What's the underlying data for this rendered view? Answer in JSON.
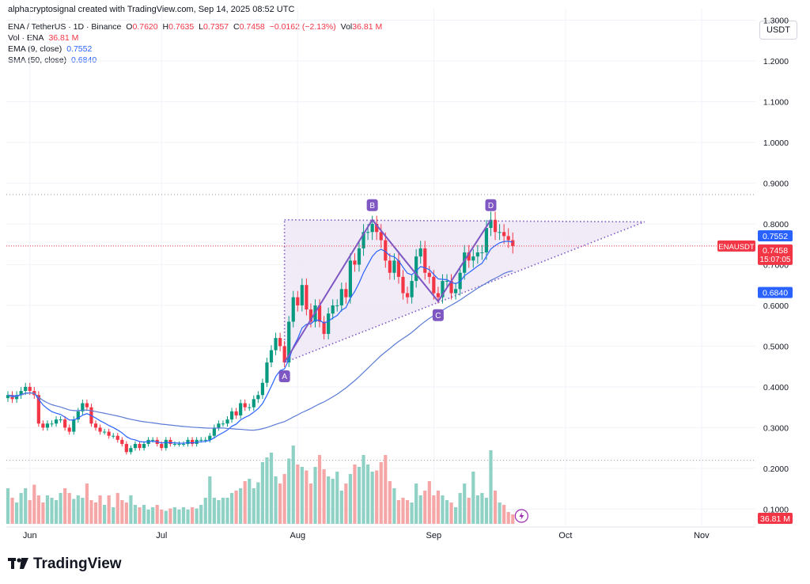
{
  "credit": "alphacryptosignal created with TradingView.com, Sep 14, 2025 08:52 UTC",
  "currency_button": "USDT",
  "legend": {
    "symbol": "ENA / TetherUS · 1D · Binance",
    "o_label": "O",
    "o": "0.7620",
    "h_label": "H",
    "h": "0.7635",
    "l_label": "L",
    "l": "0.7357",
    "c_label": "C",
    "c": "0.7458",
    "change": "−0.0162 (−2.13%)",
    "vol_label": "Vol",
    "vol": "36.81 M",
    "vol_ind_label": "Vol · ENA",
    "vol_ind_value": "36.81 M",
    "ema_label": "EMA (9, close)",
    "ema_value": "0.7552",
    "sma_label": "SMA (50, close)",
    "sma_value": "0.6840"
  },
  "logo_text": "TradingView",
  "colors": {
    "up": "#089981",
    "down": "#f23645",
    "ema": "#2962ff",
    "sma": "#5b7bd5",
    "pattern": "#7e57c2",
    "fill": "#ede7f6",
    "vol_up": "#8fd1c5",
    "vol_down": "#f5a6a6"
  },
  "chart_data": {
    "type": "candlestick",
    "y_axis_ticks": [
      "0.1000",
      "0.2000",
      "0.3000",
      "0.4000",
      "0.5000",
      "0.6000",
      "0.7000",
      "0.8000",
      "0.9000",
      "1.0000",
      "1.1000",
      "1.2000",
      "1.3000"
    ],
    "x_axis_ticks": [
      {
        "label": "Jun",
        "day": 5
      },
      {
        "label": "Jul",
        "day": 35
      },
      {
        "label": "Aug",
        "day": 66
      },
      {
        "label": "Sep",
        "day": 97
      },
      {
        "label": "Oct",
        "day": 127
      },
      {
        "label": "Nov",
        "day": 158
      }
    ],
    "ylim": [
      0.06,
      1.33
    ],
    "first_bar": "May 25",
    "price_labels": [
      {
        "name": "ema",
        "text": "0.7552",
        "value": 0.7552
      },
      {
        "name": "last",
        "text": "0.7458",
        "value": 0.7458,
        "countdown": "15:07:05",
        "ticker": "ENAUSDT"
      },
      {
        "name": "sma",
        "text": "0.6840",
        "value": 0.684
      },
      {
        "name": "volume",
        "text": "36.81 M"
      }
    ],
    "horizontal_dotted_lines": [
      0.872,
      0.22
    ],
    "pattern_points": [
      {
        "label": "A",
        "day": 63,
        "price": 0.46
      },
      {
        "label": "B",
        "day": 83,
        "price": 0.81
      },
      {
        "label": "C",
        "day": 98,
        "price": 0.61
      },
      {
        "label": "D",
        "day": 110,
        "price": 0.81
      }
    ],
    "triangle": {
      "apex_day": 145,
      "apex_price": 0.805,
      "top_price": 0.81,
      "start_day": 63,
      "start_price": 0.46
    },
    "closes": [
      0.38,
      0.37,
      0.38,
      0.39,
      0.4,
      0.39,
      0.38,
      0.31,
      0.3,
      0.31,
      0.31,
      0.32,
      0.32,
      0.3,
      0.29,
      0.32,
      0.34,
      0.36,
      0.35,
      0.31,
      0.3,
      0.29,
      0.29,
      0.28,
      0.28,
      0.27,
      0.26,
      0.24,
      0.25,
      0.26,
      0.25,
      0.26,
      0.27,
      0.27,
      0.26,
      0.25,
      0.27,
      0.26,
      0.26,
      0.26,
      0.26,
      0.27,
      0.26,
      0.27,
      0.27,
      0.27,
      0.28,
      0.3,
      0.31,
      0.31,
      0.32,
      0.34,
      0.33,
      0.36,
      0.35,
      0.35,
      0.37,
      0.38,
      0.41,
      0.46,
      0.49,
      0.52,
      0.5,
      0.46,
      0.56,
      0.62,
      0.6,
      0.65,
      0.59,
      0.56,
      0.6,
      0.56,
      0.53,
      0.58,
      0.6,
      0.6,
      0.64,
      0.62,
      0.71,
      0.7,
      0.74,
      0.78,
      0.78,
      0.8,
      0.78,
      0.76,
      0.71,
      0.68,
      0.71,
      0.67,
      0.63,
      0.62,
      0.66,
      0.72,
      0.74,
      0.68,
      0.67,
      0.63,
      0.62,
      0.66,
      0.66,
      0.63,
      0.64,
      0.68,
      0.73,
      0.71,
      0.72,
      0.73,
      0.73,
      0.79,
      0.81,
      0.78,
      0.78,
      0.77,
      0.76,
      0.7458
    ],
    "volumes": [
      0.3,
      0.22,
      0.18,
      0.26,
      0.3,
      0.2,
      0.33,
      0.24,
      0.18,
      0.24,
      0.22,
      0.2,
      0.26,
      0.3,
      0.26,
      0.21,
      0.24,
      0.22,
      0.34,
      0.2,
      0.18,
      0.24,
      0.16,
      0.24,
      0.14,
      0.26,
      0.2,
      0.18,
      0.24,
      0.16,
      0.14,
      0.16,
      0.12,
      0.14,
      0.16,
      0.12,
      0.11,
      0.13,
      0.14,
      0.12,
      0.14,
      0.12,
      0.14,
      0.13,
      0.16,
      0.22,
      0.4,
      0.22,
      0.2,
      0.22,
      0.22,
      0.26,
      0.28,
      0.3,
      0.36,
      0.38,
      0.3,
      0.35,
      0.52,
      0.56,
      0.6,
      0.4,
      0.34,
      0.42,
      0.55,
      0.66,
      0.5,
      0.48,
      0.45,
      0.34,
      0.48,
      0.58,
      0.46,
      0.4,
      0.38,
      0.44,
      0.28,
      0.34,
      0.42,
      0.5,
      0.48,
      0.58,
      0.5,
      0.44,
      0.45,
      0.52,
      0.58,
      0.36,
      0.3,
      0.2,
      0.22,
      0.2,
      0.18,
      0.34,
      0.24,
      0.28,
      0.36,
      0.24,
      0.28,
      0.24,
      0.2,
      0.18,
      0.14,
      0.26,
      0.34,
      0.22,
      0.44,
      0.24,
      0.26,
      0.22,
      0.62,
      0.28,
      0.18,
      0.16,
      0.1,
      0.08
    ]
  }
}
